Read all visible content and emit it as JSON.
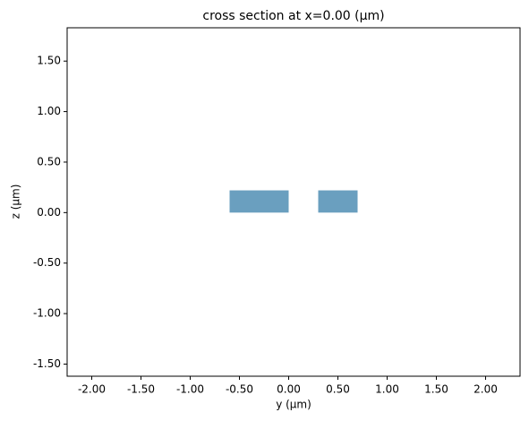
{
  "chart_data": {
    "type": "rect",
    "title": "cross section at x=0.00 (μm)",
    "x_label": "y (μm)",
    "y_label": "z (μm)",
    "color": "#6a9fbf",
    "boxes": [
      {
        "xmin": -0.6,
        "xmax": 0.0,
        "ymin": 0.0,
        "ymax": 0.22
      },
      {
        "xmin": 0.3,
        "xmax": 0.7,
        "ymin": 0.0,
        "ymax": 0.22
      }
    ],
    "xlim": [
      -2.25,
      2.35
    ],
    "ylim": [
      -1.62,
      1.83
    ],
    "xticks": [
      {
        "value": -2,
        "label": "-2.00"
      },
      {
        "value": -1.5,
        "label": "-1.50"
      },
      {
        "value": -1,
        "label": "-1.00"
      },
      {
        "value": -0.5,
        "label": "-0.50"
      },
      {
        "value": 0,
        "label": "0.00"
      },
      {
        "value": 0.5,
        "label": "0.50"
      },
      {
        "value": 1,
        "label": "1.00"
      },
      {
        "value": 1.5,
        "label": "1.50"
      },
      {
        "value": 2,
        "label": "2.00"
      }
    ],
    "yticks": [
      {
        "value": -1.5,
        "label": "-1.50"
      },
      {
        "value": -1,
        "label": "-1.00"
      },
      {
        "value": -0.5,
        "label": "-0.50"
      },
      {
        "value": 0,
        "label": "0.00"
      },
      {
        "value": 0.5,
        "label": "0.50"
      },
      {
        "value": 1,
        "label": "1.00"
      },
      {
        "value": 1.5,
        "label": "1.50"
      }
    ]
  }
}
